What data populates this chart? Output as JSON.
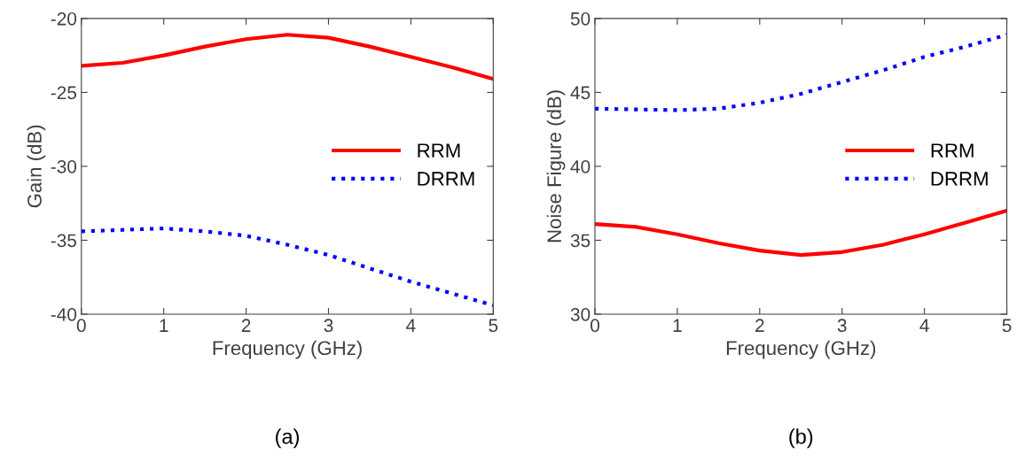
{
  "chart_data": [
    {
      "type": "line",
      "xlabel": "Frequency (GHz)",
      "ylabel": "Gain (dB)",
      "annotations": [
        "(a)"
      ],
      "x": [
        0,
        0.5,
        1,
        1.5,
        2,
        2.5,
        3,
        3.5,
        4,
        4.5,
        5
      ],
      "xlim": [
        0,
        5
      ],
      "xticks": [
        0,
        1,
        2,
        3,
        4,
        5
      ],
      "ylim": [
        -40,
        -20
      ],
      "yticks": [
        -40,
        -35,
        -30,
        -25,
        -20
      ],
      "grid": false,
      "legend": "right",
      "series": [
        {
          "name": "RRM",
          "color": "#ff0000",
          "line_style": "solid",
          "values": [
            -23.2,
            -23.0,
            -22.5,
            -21.9,
            -21.4,
            -21.1,
            -21.3,
            -21.9,
            -22.6,
            -23.3,
            -24.1
          ]
        },
        {
          "name": "DRRM",
          "color": "#0000ff",
          "line_style": "dotted",
          "values": [
            -34.4,
            -34.3,
            -34.2,
            -34.4,
            -34.7,
            -35.3,
            -36.0,
            -36.9,
            -37.8,
            -38.6,
            -39.4
          ]
        }
      ]
    },
    {
      "type": "line",
      "xlabel": "Frequency (GHz)",
      "ylabel": "Noise Figure (dB)",
      "annotations": [
        "(b)"
      ],
      "x": [
        0,
        0.5,
        1,
        1.5,
        2,
        2.5,
        3,
        3.5,
        4,
        4.5,
        5
      ],
      "xlim": [
        0,
        5
      ],
      "xticks": [
        0,
        1,
        2,
        3,
        4,
        5
      ],
      "ylim": [
        30,
        50
      ],
      "yticks": [
        30,
        35,
        40,
        45,
        50
      ],
      "grid": false,
      "legend": "right",
      "series": [
        {
          "name": "RRM",
          "color": "#ff0000",
          "line_style": "solid",
          "values": [
            36.1,
            35.9,
            35.4,
            34.8,
            34.3,
            34.0,
            34.2,
            34.7,
            35.4,
            36.2,
            37.0
          ]
        },
        {
          "name": "DRRM",
          "color": "#0000ff",
          "line_style": "dotted",
          "values": [
            43.9,
            43.85,
            43.8,
            43.9,
            44.3,
            44.9,
            45.7,
            46.5,
            47.4,
            48.1,
            48.9
          ]
        }
      ]
    }
  ]
}
